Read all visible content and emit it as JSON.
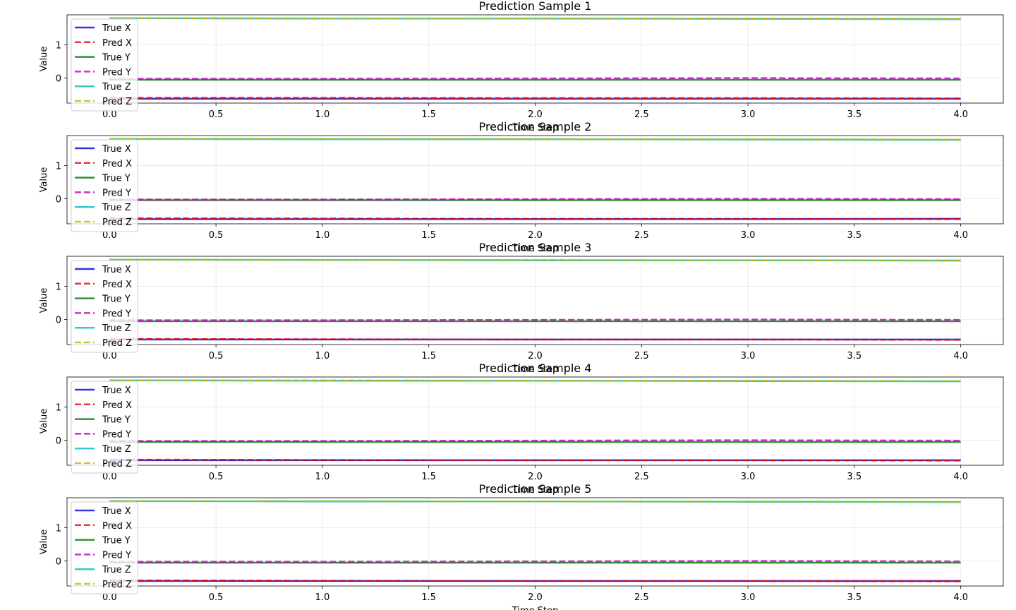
{
  "chart_data": [
    {
      "type": "line",
      "title": "Prediction Sample 1",
      "xlabel": "Time Step",
      "ylabel": "Value",
      "xlim": [
        -0.2,
        4.2
      ],
      "ylim": [
        -0.75,
        1.9
      ],
      "xticks": [
        "0.0",
        "0.5",
        "1.0",
        "1.5",
        "2.0",
        "2.5",
        "3.0",
        "3.5",
        "4.0"
      ],
      "yticks": [
        "0",
        "1"
      ],
      "grid": true,
      "legend_position": "top-left",
      "x": [
        0,
        1,
        2,
        3,
        4
      ],
      "series": [
        {
          "name": "True X",
          "color": "#0000dd",
          "style": "solid",
          "values": [
            -0.62,
            -0.62,
            -0.62,
            -0.62,
            -0.62
          ]
        },
        {
          "name": "Pred X",
          "color": "#ee0000",
          "style": "dashed",
          "values": [
            -0.59,
            -0.59,
            -0.6,
            -0.6,
            -0.61
          ]
        },
        {
          "name": "True Y",
          "color": "#007700",
          "style": "solid",
          "values": [
            -0.05,
            -0.05,
            -0.05,
            -0.05,
            -0.05
          ]
        },
        {
          "name": "Pred Y",
          "color": "#bb00bb",
          "style": "dashed",
          "values": [
            -0.02,
            -0.02,
            -0.01,
            0.0,
            -0.01
          ]
        },
        {
          "name": "True Z",
          "color": "#00bbbb",
          "style": "solid",
          "values": [
            1.8,
            1.79,
            1.79,
            1.78,
            1.77
          ]
        },
        {
          "name": "Pred Z",
          "color": "#bbbb00",
          "style": "dashed",
          "values": [
            1.8,
            1.79,
            1.79,
            1.79,
            1.78
          ]
        }
      ]
    },
    {
      "type": "line",
      "title": "Prediction Sample 2",
      "xlabel": "Time Step",
      "ylabel": "Value",
      "xlim": [
        -0.2,
        4.2
      ],
      "ylim": [
        -0.75,
        1.9
      ],
      "xticks": [
        "0.0",
        "0.5",
        "1.0",
        "1.5",
        "2.0",
        "2.5",
        "3.0",
        "3.5",
        "4.0"
      ],
      "yticks": [
        "0",
        "1"
      ],
      "grid": true,
      "legend_position": "top-left",
      "x": [
        0,
        1,
        2,
        3,
        4
      ],
      "series": [
        {
          "name": "True X",
          "color": "#0000dd",
          "style": "solid",
          "values": [
            -0.61,
            -0.61,
            -0.61,
            -0.61,
            -0.6
          ]
        },
        {
          "name": "Pred X",
          "color": "#ee0000",
          "style": "dashed",
          "values": [
            -0.58,
            -0.59,
            -0.6,
            -0.6,
            -0.61
          ]
        },
        {
          "name": "True Y",
          "color": "#007700",
          "style": "solid",
          "values": [
            -0.04,
            -0.04,
            -0.04,
            -0.04,
            -0.04
          ]
        },
        {
          "name": "Pred Y",
          "color": "#bb00bb",
          "style": "dashed",
          "values": [
            -0.02,
            -0.02,
            -0.01,
            0.0,
            -0.01
          ]
        },
        {
          "name": "True Z",
          "color": "#00bbbb",
          "style": "solid",
          "values": [
            1.8,
            1.79,
            1.79,
            1.78,
            1.77
          ]
        },
        {
          "name": "Pred Z",
          "color": "#bbbb00",
          "style": "dashed",
          "values": [
            1.8,
            1.8,
            1.79,
            1.79,
            1.78
          ]
        }
      ]
    },
    {
      "type": "line",
      "title": "Prediction Sample 3",
      "xlabel": "Time Step",
      "ylabel": "Value",
      "xlim": [
        -0.2,
        4.2
      ],
      "ylim": [
        -0.75,
        1.9
      ],
      "xticks": [
        "0.0",
        "0.5",
        "1.0",
        "1.5",
        "2.0",
        "2.5",
        "3.0",
        "3.5",
        "4.0"
      ],
      "yticks": [
        "0",
        "1"
      ],
      "grid": true,
      "legend_position": "top-left",
      "x": [
        0,
        1,
        2,
        3,
        4
      ],
      "series": [
        {
          "name": "True X",
          "color": "#0000dd",
          "style": "solid",
          "values": [
            -0.6,
            -0.6,
            -0.6,
            -0.6,
            -0.6
          ]
        },
        {
          "name": "Pred X",
          "color": "#ee0000",
          "style": "dashed",
          "values": [
            -0.58,
            -0.59,
            -0.6,
            -0.6,
            -0.61
          ]
        },
        {
          "name": "True Y",
          "color": "#007700",
          "style": "solid",
          "values": [
            -0.05,
            -0.05,
            -0.05,
            -0.05,
            -0.05
          ]
        },
        {
          "name": "Pred Y",
          "color": "#bb00bb",
          "style": "dashed",
          "values": [
            -0.02,
            -0.02,
            -0.01,
            0.0,
            -0.01
          ]
        },
        {
          "name": "True Z",
          "color": "#00bbbb",
          "style": "solid",
          "values": [
            1.8,
            1.79,
            1.78,
            1.78,
            1.77
          ]
        },
        {
          "name": "Pred Z",
          "color": "#bbbb00",
          "style": "dashed",
          "values": [
            1.8,
            1.79,
            1.79,
            1.78,
            1.78
          ]
        }
      ]
    },
    {
      "type": "line",
      "title": "Prediction Sample 4",
      "xlabel": "Time Step",
      "ylabel": "Value",
      "xlim": [
        -0.2,
        4.2
      ],
      "ylim": [
        -0.75,
        1.9
      ],
      "xticks": [
        "0.0",
        "0.5",
        "1.0",
        "1.5",
        "2.0",
        "2.5",
        "3.0",
        "3.5",
        "4.0"
      ],
      "yticks": [
        "0",
        "1"
      ],
      "grid": true,
      "legend_position": "top-left",
      "x": [
        0,
        1,
        2,
        3,
        4
      ],
      "series": [
        {
          "name": "True X",
          "color": "#0000dd",
          "style": "solid",
          "values": [
            -0.6,
            -0.6,
            -0.6,
            -0.6,
            -0.6
          ]
        },
        {
          "name": "Pred X",
          "color": "#ee0000",
          "style": "dashed",
          "values": [
            -0.58,
            -0.59,
            -0.6,
            -0.6,
            -0.61
          ]
        },
        {
          "name": "True Y",
          "color": "#007700",
          "style": "solid",
          "values": [
            -0.05,
            -0.05,
            -0.05,
            -0.05,
            -0.05
          ]
        },
        {
          "name": "Pred Y",
          "color": "#bb00bb",
          "style": "dashed",
          "values": [
            -0.02,
            -0.02,
            -0.01,
            0.0,
            -0.01
          ]
        },
        {
          "name": "True Z",
          "color": "#00bbbb",
          "style": "solid",
          "values": [
            1.8,
            1.79,
            1.79,
            1.78,
            1.77
          ]
        },
        {
          "name": "Pred Z",
          "color": "#bbbb00",
          "style": "dashed",
          "values": [
            1.8,
            1.8,
            1.79,
            1.79,
            1.78
          ]
        }
      ]
    },
    {
      "type": "line",
      "title": "Prediction Sample 5",
      "xlabel": "Time Step",
      "ylabel": "Value",
      "xlim": [
        -0.2,
        4.2
      ],
      "ylim": [
        -0.75,
        1.9
      ],
      "xticks": [
        "0.0",
        "0.5",
        "1.0",
        "1.5",
        "2.0",
        "2.5",
        "3.0",
        "3.5",
        "4.0"
      ],
      "yticks": [
        "0",
        "1"
      ],
      "grid": true,
      "legend_position": "top-left",
      "x": [
        0,
        1,
        2,
        3,
        4
      ],
      "series": [
        {
          "name": "True X",
          "color": "#0000dd",
          "style": "solid",
          "values": [
            -0.6,
            -0.6,
            -0.6,
            -0.6,
            -0.6
          ]
        },
        {
          "name": "Pred X",
          "color": "#ee0000",
          "style": "dashed",
          "values": [
            -0.58,
            -0.59,
            -0.6,
            -0.6,
            -0.61
          ]
        },
        {
          "name": "True Y",
          "color": "#007700",
          "style": "solid",
          "values": [
            -0.05,
            -0.05,
            -0.05,
            -0.05,
            -0.05
          ]
        },
        {
          "name": "Pred Y",
          "color": "#bb00bb",
          "style": "dashed",
          "values": [
            -0.02,
            -0.02,
            -0.01,
            0.0,
            -0.01
          ]
        },
        {
          "name": "True Z",
          "color": "#00bbbb",
          "style": "solid",
          "values": [
            1.8,
            1.79,
            1.79,
            1.78,
            1.77
          ]
        },
        {
          "name": "Pred Z",
          "color": "#bbbb00",
          "style": "dashed",
          "values": [
            1.8,
            1.8,
            1.79,
            1.79,
            1.78
          ]
        }
      ]
    }
  ]
}
